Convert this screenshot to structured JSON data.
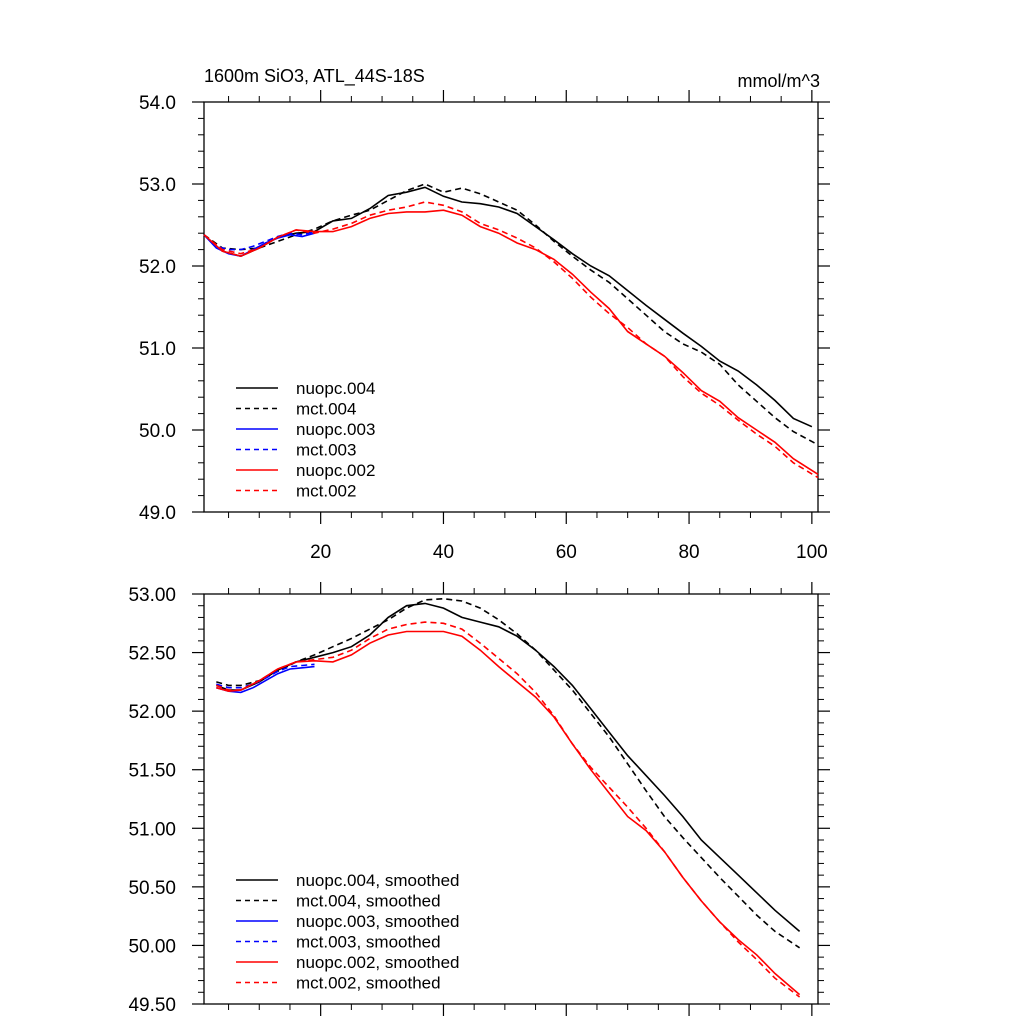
{
  "chart_data": [
    {
      "type": "line",
      "title": "1600m SiO3, ATL_44S-18S",
      "units": "mmol/m^3",
      "xlim": [
        1,
        101
      ],
      "ylim": [
        49.0,
        54.0
      ],
      "x_ticks": [
        20,
        40,
        60,
        80,
        100
      ],
      "x_tick_labels": [
        "20",
        "40",
        "60",
        "80",
        "100"
      ],
      "y_ticks": [
        49.0,
        50.0,
        51.0,
        52.0,
        53.0,
        54.0
      ],
      "y_tick_labels": [
        "49.0",
        "50.0",
        "51.0",
        "52.0",
        "53.0",
        "54.0"
      ],
      "series": [
        {
          "name": "nuopc.004",
          "color": "#000000",
          "dash": "solid",
          "x": [
            1,
            4,
            7,
            10,
            13,
            16,
            19,
            22,
            25,
            28,
            31,
            34,
            37,
            40,
            43,
            46,
            49,
            52,
            55,
            58,
            61,
            64,
            67,
            70,
            73,
            76,
            79,
            82,
            85,
            88,
            91,
            94,
            97,
            100
          ],
          "y": [
            52.38,
            52.18,
            52.12,
            52.22,
            52.35,
            52.4,
            52.42,
            52.55,
            52.58,
            52.7,
            52.86,
            52.9,
            52.96,
            52.85,
            52.78,
            52.76,
            52.72,
            52.64,
            52.48,
            52.32,
            52.15,
            52.0,
            51.88,
            51.7,
            51.52,
            51.35,
            51.18,
            51.02,
            50.84,
            50.72,
            50.55,
            50.36,
            50.14,
            50.04
          ]
        },
        {
          "name": "mct.004",
          "color": "#000000",
          "dash": "dashed",
          "x": [
            1,
            4,
            7,
            10,
            13,
            16,
            19,
            22,
            25,
            28,
            31,
            34,
            37,
            40,
            43,
            46,
            49,
            52,
            55,
            58,
            61,
            64,
            67,
            70,
            73,
            76,
            79,
            82,
            85,
            88,
            91,
            94,
            97,
            101
          ],
          "y": [
            52.38,
            52.22,
            52.2,
            52.22,
            52.3,
            52.38,
            52.45,
            52.55,
            52.62,
            52.68,
            52.8,
            52.92,
            53.0,
            52.9,
            52.95,
            52.88,
            52.78,
            52.68,
            52.5,
            52.3,
            52.12,
            51.95,
            51.8,
            51.6,
            51.4,
            51.2,
            51.05,
            50.95,
            50.8,
            50.55,
            50.35,
            50.15,
            49.98,
            49.82
          ]
        },
        {
          "name": "nuopc.003",
          "color": "#0000ff",
          "dash": "solid",
          "x": [
            1,
            3,
            5,
            7,
            9,
            11,
            13,
            15,
            17,
            19
          ],
          "y": [
            52.38,
            52.22,
            52.15,
            52.12,
            52.2,
            52.28,
            52.34,
            52.38,
            52.36,
            52.4
          ]
        },
        {
          "name": "mct.003",
          "color": "#0000ff",
          "dash": "dashed",
          "x": [
            1,
            3,
            5,
            7,
            9,
            11,
            13,
            15,
            17,
            19
          ],
          "y": [
            52.38,
            52.24,
            52.2,
            52.2,
            52.24,
            52.3,
            52.36,
            52.4,
            52.38,
            52.42
          ]
        },
        {
          "name": "nuopc.002",
          "color": "#ff0000",
          "dash": "solid",
          "x": [
            1,
            4,
            7,
            10,
            13,
            16,
            19,
            22,
            25,
            28,
            31,
            34,
            37,
            40,
            43,
            46,
            49,
            52,
            55,
            58,
            61,
            64,
            67,
            70,
            73,
            76,
            79,
            82,
            85,
            88,
            91,
            94,
            97,
            101
          ],
          "y": [
            52.38,
            52.18,
            52.12,
            52.22,
            52.35,
            52.44,
            52.42,
            52.42,
            52.48,
            52.58,
            52.64,
            52.66,
            52.66,
            52.68,
            52.62,
            52.48,
            52.4,
            52.28,
            52.2,
            52.08,
            51.9,
            51.68,
            51.48,
            51.2,
            51.05,
            50.9,
            50.7,
            50.48,
            50.35,
            50.15,
            50.0,
            49.85,
            49.65,
            49.46
          ]
        },
        {
          "name": "mct.002",
          "color": "#ff0000",
          "dash": "dashed",
          "x": [
            1,
            4,
            7,
            10,
            13,
            16,
            19,
            22,
            25,
            28,
            31,
            34,
            37,
            40,
            43,
            46,
            49,
            52,
            55,
            58,
            61,
            64,
            67,
            70,
            73,
            76,
            79,
            82,
            85,
            88,
            91,
            94,
            97,
            101
          ],
          "y": [
            52.38,
            52.2,
            52.15,
            52.22,
            52.35,
            52.44,
            52.4,
            52.45,
            52.52,
            52.62,
            52.68,
            52.72,
            52.78,
            52.74,
            52.66,
            52.52,
            52.44,
            52.34,
            52.22,
            52.05,
            51.85,
            51.62,
            51.42,
            51.25,
            51.05,
            50.9,
            50.65,
            50.45,
            50.3,
            50.12,
            49.95,
            49.8,
            49.6,
            49.42
          ]
        }
      ],
      "legend": [
        "nuopc.004",
        "mct.004",
        "nuopc.003",
        "mct.003",
        "nuopc.002",
        "mct.002"
      ],
      "legend_position": "bottom-left"
    },
    {
      "type": "line",
      "title": "",
      "xlim": [
        1,
        101
      ],
      "ylim": [
        49.5,
        53.0
      ],
      "x_ticks": [
        20,
        40,
        60,
        80,
        100
      ],
      "x_tick_labels": [],
      "y_ticks": [
        49.5,
        50.0,
        50.5,
        51.0,
        51.5,
        52.0,
        52.5,
        53.0
      ],
      "y_tick_labels": [
        "49.50",
        "50.00",
        "50.50",
        "51.00",
        "51.50",
        "52.00",
        "52.50",
        "53.00"
      ],
      "series": [
        {
          "name": "nuopc.004, smoothed",
          "color": "#000000",
          "dash": "solid",
          "x": [
            3,
            5,
            7,
            10,
            13,
            16,
            19,
            22,
            25,
            28,
            31,
            34,
            37,
            40,
            43,
            46,
            49,
            52,
            55,
            58,
            61,
            64,
            67,
            70,
            73,
            76,
            79,
            82,
            85,
            88,
            91,
            94,
            98
          ],
          "y": [
            52.22,
            52.18,
            52.18,
            52.25,
            52.35,
            52.42,
            52.46,
            52.5,
            52.55,
            52.65,
            52.8,
            52.9,
            52.92,
            52.88,
            52.8,
            52.76,
            52.72,
            52.64,
            52.52,
            52.38,
            52.22,
            52.02,
            51.82,
            51.62,
            51.45,
            51.28,
            51.1,
            50.9,
            50.75,
            50.6,
            50.45,
            50.3,
            50.12
          ]
        },
        {
          "name": "mct.004, smoothed",
          "color": "#000000",
          "dash": "dashed",
          "x": [
            3,
            5,
            7,
            10,
            13,
            16,
            19,
            22,
            25,
            28,
            31,
            34,
            37,
            40,
            43,
            46,
            49,
            52,
            55,
            58,
            61,
            64,
            67,
            70,
            73,
            76,
            79,
            82,
            85,
            88,
            91,
            94,
            98
          ],
          "y": [
            52.25,
            52.22,
            52.22,
            52.26,
            52.34,
            52.42,
            52.48,
            52.55,
            52.62,
            52.7,
            52.78,
            52.88,
            52.95,
            52.96,
            52.94,
            52.88,
            52.78,
            52.66,
            52.52,
            52.35,
            52.18,
            51.98,
            51.78,
            51.55,
            51.32,
            51.1,
            50.92,
            50.75,
            50.58,
            50.42,
            50.26,
            50.12,
            49.98
          ]
        },
        {
          "name": "nuopc.003, smoothed",
          "color": "#0000ff",
          "dash": "solid",
          "x": [
            3,
            5,
            7,
            9,
            11,
            13,
            15,
            17,
            19
          ],
          "y": [
            52.2,
            52.17,
            52.16,
            52.2,
            52.26,
            52.32,
            52.36,
            52.37,
            52.38
          ]
        },
        {
          "name": "mct.003, smoothed",
          "color": "#0000ff",
          "dash": "dashed",
          "x": [
            3,
            5,
            7,
            9,
            11,
            13,
            15,
            17,
            19
          ],
          "y": [
            52.23,
            52.2,
            52.2,
            52.23,
            52.28,
            52.34,
            52.38,
            52.39,
            52.4
          ]
        },
        {
          "name": "nuopc.002, smoothed",
          "color": "#ff0000",
          "dash": "solid",
          "x": [
            3,
            5,
            7,
            10,
            13,
            16,
            19,
            22,
            25,
            28,
            31,
            34,
            37,
            40,
            43,
            46,
            49,
            52,
            55,
            58,
            61,
            64,
            67,
            70,
            73,
            76,
            79,
            82,
            85,
            88,
            91,
            94,
            98
          ],
          "y": [
            52.2,
            52.17,
            52.18,
            52.26,
            52.36,
            52.42,
            52.43,
            52.42,
            52.48,
            52.58,
            52.65,
            52.68,
            52.68,
            52.68,
            52.64,
            52.52,
            52.38,
            52.25,
            52.12,
            51.95,
            51.72,
            51.5,
            51.3,
            51.1,
            50.98,
            50.8,
            50.58,
            50.38,
            50.2,
            50.05,
            49.92,
            49.76,
            49.58
          ]
        },
        {
          "name": "mct.002, smoothed",
          "color": "#ff0000",
          "dash": "dashed",
          "x": [
            3,
            5,
            7,
            10,
            13,
            16,
            19,
            22,
            25,
            28,
            31,
            34,
            37,
            40,
            43,
            46,
            49,
            52,
            55,
            58,
            61,
            64,
            67,
            70,
            73,
            76,
            79,
            82,
            85,
            88,
            91,
            94,
            98
          ],
          "y": [
            52.22,
            52.18,
            52.18,
            52.26,
            52.36,
            52.42,
            52.44,
            52.46,
            52.52,
            52.62,
            52.7,
            52.74,
            52.76,
            52.75,
            52.7,
            52.58,
            52.45,
            52.32,
            52.16,
            51.96,
            51.72,
            51.52,
            51.35,
            51.18,
            51.0,
            50.8,
            50.58,
            50.38,
            50.2,
            50.03,
            49.88,
            49.72,
            49.56
          ]
        }
      ],
      "legend": [
        "nuopc.004, smoothed",
        "mct.004, smoothed",
        "nuopc.003, smoothed",
        "mct.003, smoothed",
        "nuopc.002, smoothed",
        "mct.002, smoothed"
      ],
      "legend_position": "bottom-left"
    }
  ]
}
